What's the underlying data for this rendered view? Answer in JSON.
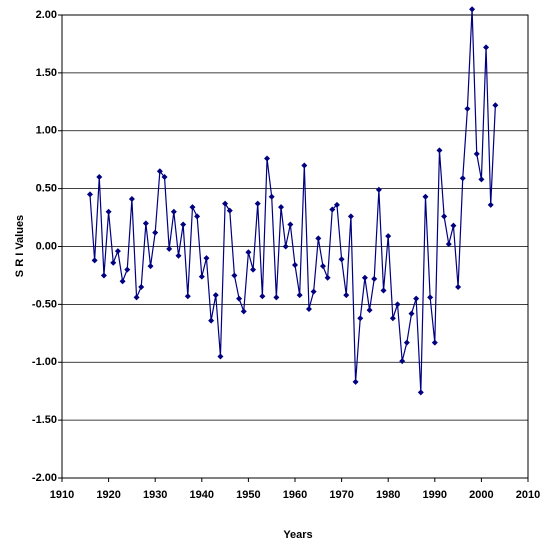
{
  "chart_data": {
    "type": "line",
    "x_label": "Years",
    "y_label": "S R I Values",
    "x": [
      1916,
      1917,
      1918,
      1919,
      1920,
      1921,
      1922,
      1923,
      1924,
      1925,
      1926,
      1927,
      1928,
      1929,
      1930,
      1931,
      1932,
      1933,
      1934,
      1935,
      1936,
      1937,
      1938,
      1939,
      1940,
      1941,
      1942,
      1943,
      1944,
      1945,
      1946,
      1947,
      1948,
      1949,
      1950,
      1951,
      1952,
      1953,
      1954,
      1955,
      1956,
      1957,
      1958,
      1959,
      1960,
      1961,
      1962,
      1963,
      1964,
      1965,
      1966,
      1967,
      1968,
      1969,
      1970,
      1971,
      1972,
      1973,
      1974,
      1975,
      1976,
      1977,
      1978,
      1979,
      1980,
      1981,
      1982,
      1983,
      1984,
      1985,
      1986,
      1987,
      1988,
      1989,
      1990,
      1991,
      1992,
      1993,
      1994,
      1995,
      1996,
      1997,
      1998,
      1999,
      2000,
      2001,
      2002,
      2003
    ],
    "series": [
      {
        "color": "#000080",
        "values": [
          0.45,
          -0.12,
          0.6,
          -0.25,
          0.3,
          -0.14,
          -0.04,
          -0.3,
          -0.2,
          0.41,
          -0.44,
          -0.35,
          0.2,
          -0.17,
          0.12,
          0.65,
          0.6,
          -0.02,
          0.3,
          -0.08,
          0.19,
          -0.43,
          0.34,
          0.26,
          -0.26,
          -0.1,
          -0.64,
          -0.42,
          -0.95,
          0.37,
          0.31,
          -0.25,
          -0.45,
          -0.56,
          -0.05,
          -0.2,
          0.37,
          -0.43,
          0.76,
          0.43,
          -0.44,
          0.34,
          0.0,
          0.19,
          -0.16,
          -0.42,
          0.7,
          -0.54,
          -0.39,
          0.07,
          -0.17,
          -0.27,
          0.32,
          0.36,
          -0.11,
          -0.42,
          0.26,
          -1.17,
          -0.62,
          -0.27,
          -0.55,
          -0.28,
          0.49,
          -0.38,
          0.09,
          -0.62,
          -0.5,
          -0.99,
          -0.83,
          -0.58,
          -0.45,
          -1.26,
          0.43,
          -0.44,
          -0.83,
          0.83,
          0.26,
          0.02,
          0.18,
          -0.35,
          0.59,
          1.19,
          2.05,
          0.8,
          0.58,
          1.72,
          0.36,
          1.22
        ]
      }
    ],
    "xlim": [
      1910,
      2010
    ],
    "xticks": [
      1910,
      1920,
      1930,
      1940,
      1950,
      1960,
      1970,
      1980,
      1990,
      2000,
      2010
    ],
    "ylim": [
      -2,
      2
    ],
    "yticks": [
      {
        "value": -2,
        "label": "-2.00"
      },
      {
        "value": -1.5,
        "label": "-1.50"
      },
      {
        "value": -1,
        "label": "-1.00"
      },
      {
        "value": -0.5,
        "label": "-0.50"
      },
      {
        "value": 0,
        "label": "0.00"
      },
      {
        "value": 0.5,
        "label": "0.50"
      },
      {
        "value": 1,
        "label": "1.00"
      },
      {
        "value": 1.5,
        "label": "1.50"
      },
      {
        "value": 2,
        "label": "2.00"
      }
    ],
    "grid": true
  }
}
